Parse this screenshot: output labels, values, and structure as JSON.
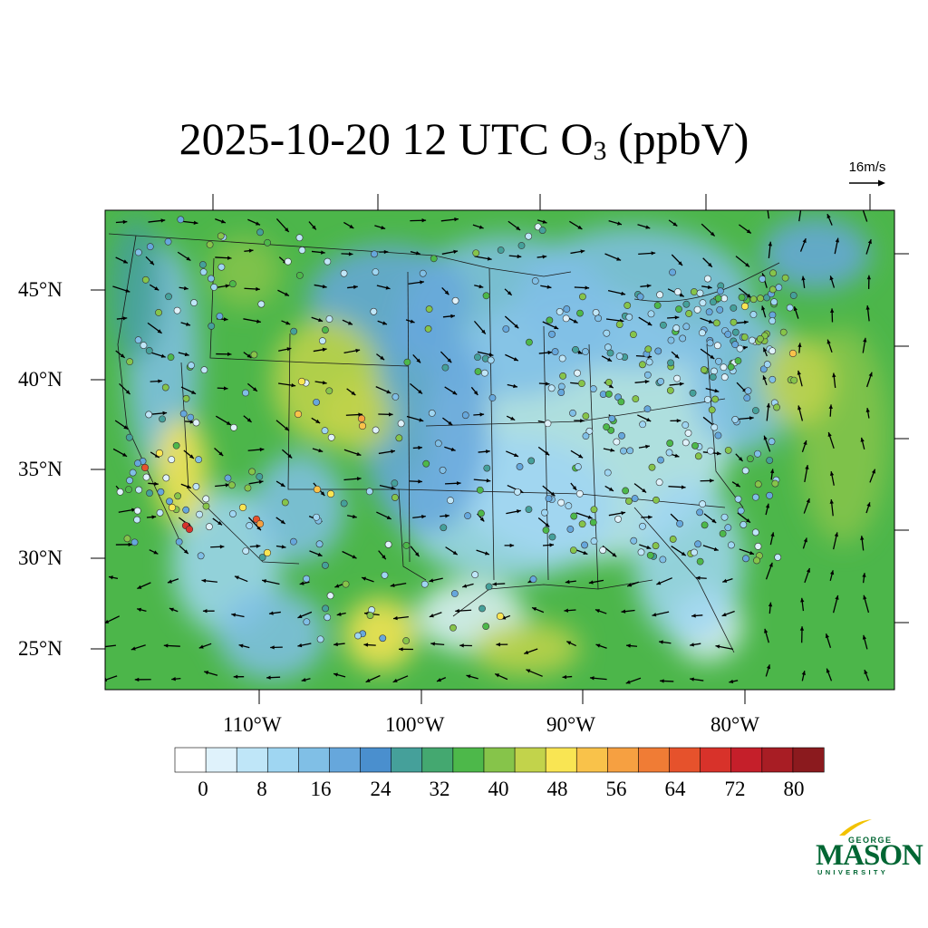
{
  "title": {
    "main": "2025-10-20 12 UTC O",
    "sub": "3",
    "units": " (ppbV)"
  },
  "wind_reference": {
    "label": "16m/s"
  },
  "map": {
    "lat_labels": [
      "45°N",
      "40°N",
      "35°N",
      "30°N",
      "25°N"
    ],
    "lon_labels": [
      "110°W",
      "100°W",
      "90°W",
      "80°W"
    ]
  },
  "colorbar": {
    "colors": [
      "#ffffff",
      "#dff2fb",
      "#bfe6f8",
      "#9fd6f2",
      "#80bfe6",
      "#66a7dc",
      "#4a8fce",
      "#45a09a",
      "#44a870",
      "#4db84a",
      "#86c44a",
      "#c2d34b",
      "#f9e553",
      "#f9c24a",
      "#f6a041",
      "#f07c35",
      "#e6522c",
      "#d8322a",
      "#c51f2a",
      "#a81d24",
      "#8b1a1e"
    ],
    "labels": [
      "0",
      "8",
      "16",
      "24",
      "32",
      "40",
      "48",
      "56",
      "64",
      "72",
      "80"
    ]
  },
  "logo": {
    "line1": "GEORGE",
    "line2": "MASON",
    "line3": "UNIVERSITY",
    "color": "#006633"
  }
}
